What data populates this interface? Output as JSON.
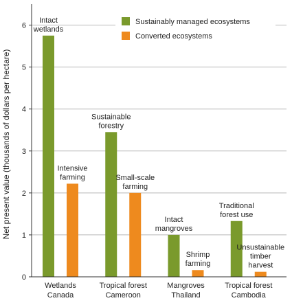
{
  "chart_data": {
    "type": "bar",
    "ylabel": "Net present value (thousands of dollars per hectare)",
    "ylim": [
      0,
      6.5
    ],
    "yticks": [
      0,
      1,
      2,
      3,
      4,
      5,
      6
    ],
    "grid": true,
    "legend_position": "top-right",
    "categories": [
      [
        "Wetlands",
        "Canada"
      ],
      [
        "Tropical forest",
        "Cameroon"
      ],
      [
        "Mangroves",
        "Thailand"
      ],
      [
        "Tropical forest",
        "Cambodia"
      ]
    ],
    "series": [
      {
        "name": "Sustainably managed ecosystems",
        "color": "#7a9a2c",
        "values": [
          5.75,
          3.45,
          1.0,
          1.33
        ],
        "bar_labels": [
          [
            "Intact",
            "wetlands"
          ],
          [
            "Sustainable",
            "forestry"
          ],
          [
            "Intact",
            "mangroves"
          ],
          [
            "Traditional",
            "forest use"
          ]
        ]
      },
      {
        "name": "Converted ecosystems",
        "color": "#ee8a1e",
        "values": [
          2.22,
          2.0,
          0.16,
          0.12
        ],
        "bar_labels": [
          [
            "Intensive",
            "farming"
          ],
          [
            "Small-scale",
            "farming"
          ],
          [
            "Shrimp",
            "farming"
          ],
          [
            "Unsustainable",
            "timber",
            "harvest"
          ]
        ]
      }
    ]
  }
}
